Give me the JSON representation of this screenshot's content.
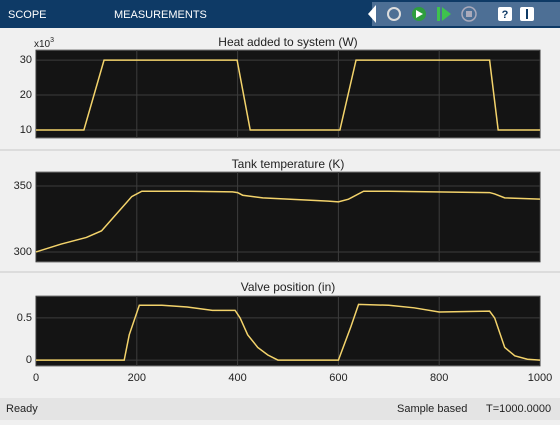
{
  "toolbar": {
    "tabs": [
      "SCOPE",
      "MEASUREMENTS"
    ]
  },
  "chart_data": [
    {
      "type": "line",
      "title": "Heat added to system (W)",
      "y_scale_label": {
        "base": "x10",
        "exponent": "3"
      },
      "x": [
        0,
        95,
        135,
        399,
        425,
        603,
        635,
        900,
        917,
        1000
      ],
      "series": [
        {
          "color": "#f3d36b",
          "values": [
            10,
            10,
            30,
            30,
            10,
            10,
            30,
            30,
            10,
            10
          ]
        }
      ],
      "xlim": [
        0,
        1000
      ],
      "xticks": [
        0,
        200,
        400,
        600,
        800,
        1000
      ],
      "ylim": [
        7.7,
        32.9
      ],
      "yticks": [
        10,
        20,
        30
      ],
      "grid": true
    },
    {
      "type": "line",
      "title": "Tank temperature (K)",
      "x": [
        0,
        50,
        100,
        130,
        167,
        190,
        210,
        300,
        390,
        400,
        410,
        450,
        500,
        580,
        600,
        620,
        650,
        700,
        900,
        910,
        930,
        1000
      ],
      "series": [
        {
          "color": "#f3d36b",
          "values": [
            300,
            306,
            311,
            316,
            332,
            342,
            346,
            346,
            345.5,
            345,
            343,
            341,
            340,
            338.5,
            338,
            340,
            346,
            346,
            345,
            344,
            341,
            340
          ]
        }
      ],
      "xlim": [
        0,
        1000
      ],
      "xticks": [
        0,
        200,
        400,
        600,
        800,
        1000
      ],
      "ylim": [
        292.4,
        360.6
      ],
      "yticks": [
        300,
        350
      ],
      "grid": true
    },
    {
      "type": "line",
      "title": "Valve position (in)",
      "x": [
        0,
        175,
        185,
        205,
        250,
        300,
        350,
        395,
        405,
        420,
        440,
        460,
        480,
        600,
        625,
        640,
        700,
        750,
        800,
        900,
        910,
        930,
        950,
        975,
        1000
      ],
      "series": [
        {
          "color": "#f3d36b",
          "values": [
            0,
            0,
            0.3,
            0.65,
            0.65,
            0.63,
            0.59,
            0.59,
            0.5,
            0.3,
            0.15,
            0.06,
            0,
            0,
            0.4,
            0.66,
            0.65,
            0.62,
            0.57,
            0.58,
            0.5,
            0.15,
            0.05,
            0.01,
            0
          ]
        }
      ],
      "xlim": [
        0,
        1000
      ],
      "xticks": [
        0,
        200,
        400,
        600,
        800,
        1000
      ],
      "ylim": [
        -0.07,
        0.76
      ],
      "yticks": [
        0,
        0.5
      ],
      "grid": true
    }
  ],
  "status": {
    "left": "Ready",
    "mode": "Sample based",
    "time": "T=1000.0000"
  }
}
